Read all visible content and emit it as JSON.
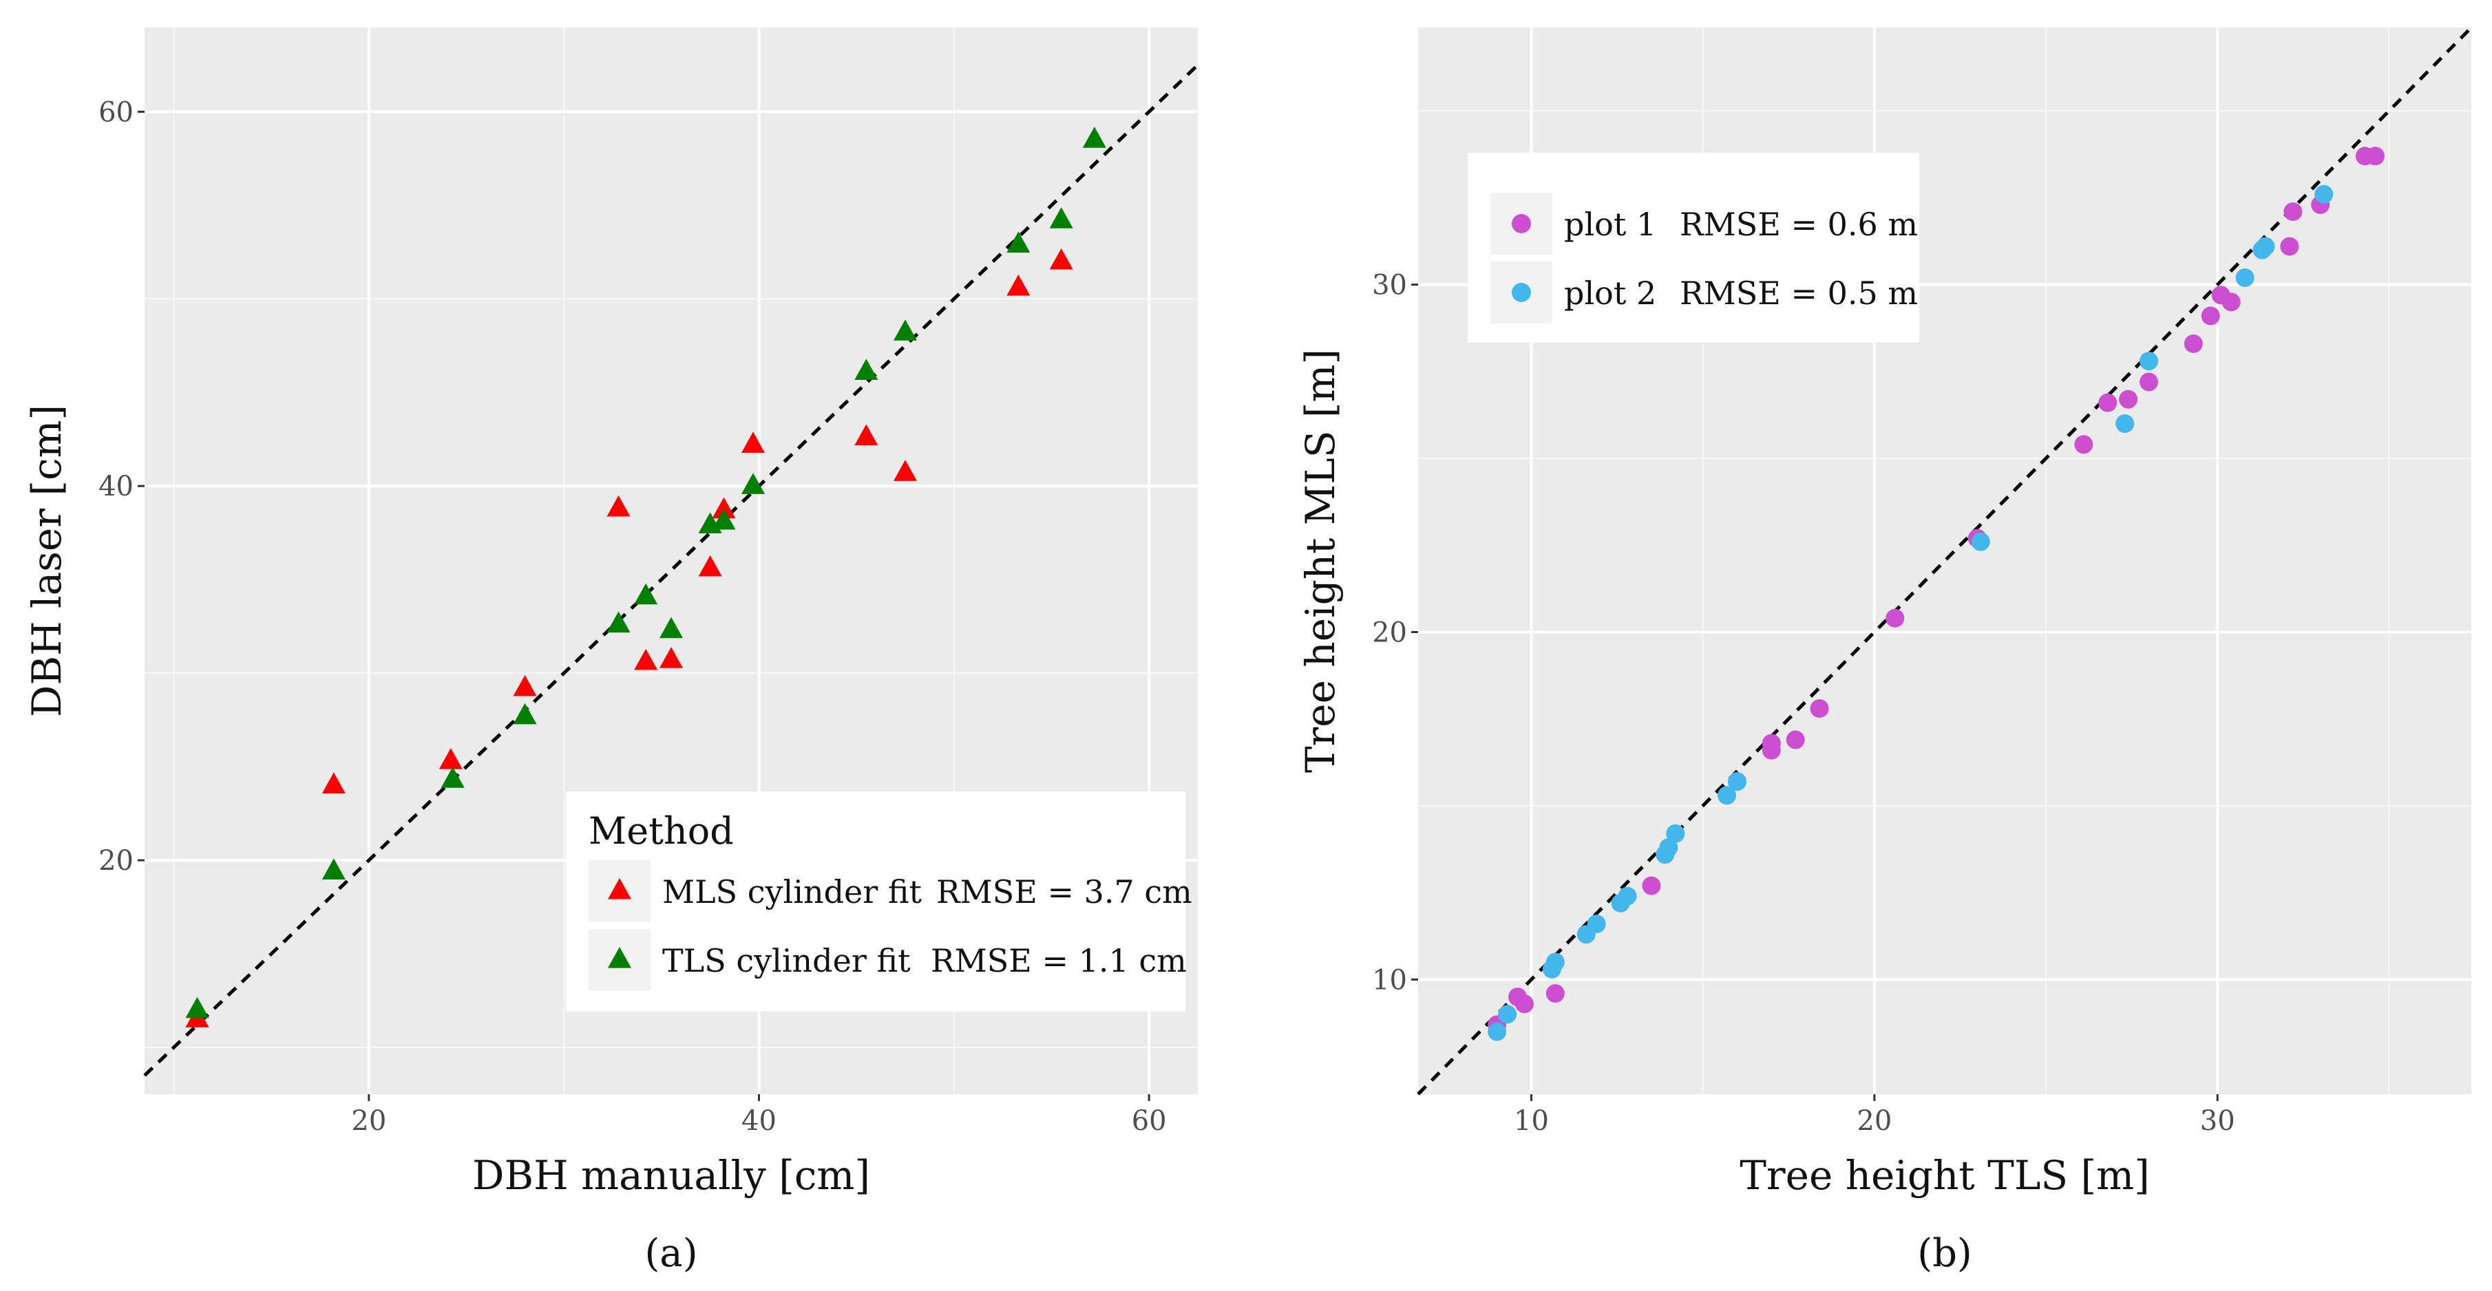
{
  "chart_data": [
    {
      "type": "scatter",
      "panel_label": "(a)",
      "xlabel": "DBH manually [cm]",
      "ylabel": "DBH laser [cm]",
      "xlim": [
        8.5,
        62.5
      ],
      "ylim": [
        7.5,
        64.5
      ],
      "xticks": [
        20,
        40,
        60
      ],
      "yticks": [
        20,
        40,
        60
      ],
      "xtick_labels": [
        "20",
        "40",
        "60"
      ],
      "ytick_labels": [
        "20",
        "40",
        "60"
      ],
      "minor_x": [
        10,
        30,
        50
      ],
      "minor_y": [
        10,
        30,
        50
      ],
      "reference_line": "y = x (dashed)",
      "grid": true,
      "legend": {
        "title": "Method",
        "position": "bottom-right",
        "entries": [
          {
            "label": "MLS cylinder fit",
            "rmse": "RMSE = 3.7 cm",
            "color": "#ff0000",
            "marker": "triangle"
          },
          {
            "label": "TLS cylinder fit",
            "rmse": "RMSE = 1.1 cm",
            "color": "#008000",
            "marker": "triangle"
          }
        ]
      },
      "series": [
        {
          "name": "MLS cylinder fit",
          "color": "#ff0000",
          "marker": "triangle",
          "x": [
            11.2,
            18.2,
            24.2,
            28.0,
            32.8,
            34.2,
            35.5,
            37.5,
            38.2,
            39.7,
            45.5,
            47.5,
            53.3,
            55.5
          ],
          "y": [
            11.5,
            24.0,
            25.3,
            29.2,
            38.8,
            30.6,
            30.7,
            35.6,
            38.7,
            42.2,
            42.6,
            40.7,
            50.6,
            52.0
          ]
        },
        {
          "name": "TLS cylinder fit",
          "color": "#008000",
          "marker": "triangle",
          "x": [
            11.2,
            18.2,
            24.3,
            28.0,
            32.8,
            34.2,
            35.5,
            37.5,
            38.2,
            39.7,
            45.5,
            47.5,
            53.3,
            55.5,
            57.2
          ],
          "y": [
            12.0,
            19.4,
            24.3,
            27.7,
            32.6,
            34.1,
            32.3,
            37.9,
            38.1,
            40.0,
            46.1,
            48.2,
            52.9,
            54.2,
            58.5
          ]
        }
      ]
    },
    {
      "type": "scatter",
      "panel_label": "(b)",
      "xlabel": "Tree height TLS [m]",
      "ylabel": "Tree height MLS [m]",
      "xlim": [
        6.7,
        37.4
      ],
      "ylim": [
        6.7,
        37.4
      ],
      "xticks": [
        10,
        20,
        30
      ],
      "yticks": [
        10,
        20,
        30
      ],
      "xtick_labels": [
        "10",
        "20",
        "30"
      ],
      "ytick_labels": [
        "10",
        "20",
        "30"
      ],
      "minor_x": [
        15,
        25,
        35
      ],
      "minor_y": [
        15,
        25,
        35
      ],
      "reference_line": "y = x (dashed)",
      "grid": true,
      "legend": {
        "title": "",
        "position": "top-left",
        "entries": [
          {
            "label": "plot 1",
            "rmse": "RMSE = 0.6 m",
            "color": "#cc4fd1",
            "marker": "circle"
          },
          {
            "label": "plot 2",
            "rmse": "RMSE = 0.5 m",
            "color": "#43b6ec",
            "marker": "circle"
          }
        ]
      },
      "series": [
        {
          "name": "plot 1",
          "color": "#cc4fd1",
          "marker": "circle",
          "x": [
            9.0,
            9.6,
            9.8,
            10.7,
            13.5,
            17.0,
            17.0,
            17.7,
            18.4,
            20.6,
            23.0,
            26.1,
            26.8,
            27.4,
            28.0,
            29.3,
            29.8,
            30.1,
            30.4,
            32.1,
            32.2,
            33.0,
            34.3,
            34.6
          ],
          "y": [
            8.7,
            9.5,
            9.3,
            9.6,
            12.7,
            16.6,
            16.8,
            16.9,
            17.8,
            20.4,
            22.7,
            25.4,
            26.6,
            26.7,
            27.2,
            28.3,
            29.1,
            29.7,
            29.5,
            31.1,
            32.1,
            32.3,
            33.7,
            33.7
          ]
        },
        {
          "name": "plot 2",
          "color": "#43b6ec",
          "marker": "circle",
          "x": [
            9.0,
            9.3,
            10.6,
            10.7,
            11.6,
            11.9,
            12.6,
            12.8,
            13.9,
            14.0,
            14.2,
            15.7,
            16.0,
            23.1,
            27.3,
            28.0,
            30.8,
            31.3,
            31.4,
            33.1
          ],
          "y": [
            8.5,
            9.0,
            10.3,
            10.5,
            11.3,
            11.6,
            12.2,
            12.4,
            13.6,
            13.8,
            14.2,
            15.3,
            15.7,
            22.6,
            26.0,
            27.8,
            30.2,
            31.0,
            31.1,
            32.6
          ]
        }
      ]
    }
  ]
}
